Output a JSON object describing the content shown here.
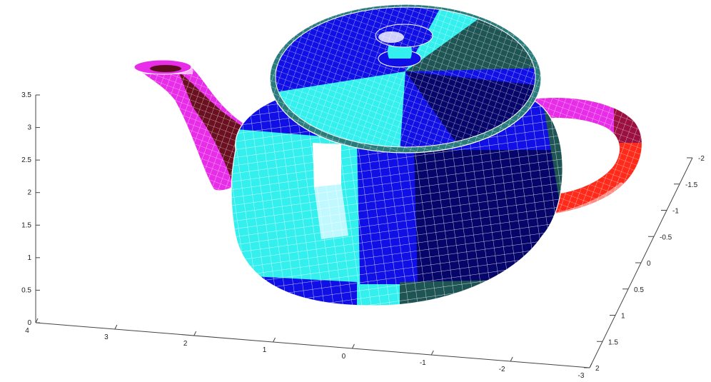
{
  "chart_data": {
    "type": "surface",
    "title": "",
    "xlabel": "",
    "ylabel": "",
    "zlabel": "",
    "grid": false,
    "surface": "teapot",
    "axes": {
      "x": {
        "ticks": [
          "4",
          "3",
          "2",
          "1",
          "0",
          "-1",
          "-2",
          "-3"
        ],
        "range": [
          -3,
          4
        ]
      },
      "y": {
        "ticks": [
          "-2",
          "-1.5",
          "-1",
          "-0.5",
          "0",
          "0.5",
          "1",
          "1.5",
          "2"
        ],
        "range": [
          -2,
          2
        ]
      },
      "z": {
        "ticks": [
          "0",
          "0.5",
          "1",
          "1.5",
          "2",
          "2.5",
          "3",
          "3.5"
        ],
        "range": [
          0,
          3.5
        ]
      }
    },
    "colors": {
      "cyan": "#33f0ee",
      "blue": "#1010e6",
      "navy": "#06066a",
      "teal": "#1f5454",
      "magenta": "#e82de8",
      "maroon": "#6a1020",
      "red": "#ff2a1a",
      "mesh_line": "#ffffff"
    }
  }
}
